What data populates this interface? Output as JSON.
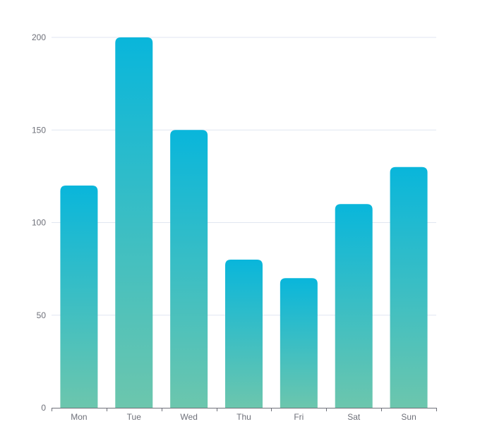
{
  "colors": {
    "bar_top": "#09b6db",
    "bar_bottom": "#6cc6ad",
    "grid": "#e0e6f1",
    "axis": "#6e7079",
    "tick_text": "#6e7079"
  },
  "chart_data": {
    "type": "bar",
    "categories": [
      "Mon",
      "Tue",
      "Wed",
      "Thu",
      "Fri",
      "Sat",
      "Sun"
    ],
    "series": [
      {
        "values": [
          120,
          200,
          150,
          80,
          70,
          110,
          130
        ]
      }
    ],
    "ylim": [
      0,
      200
    ],
    "yticks": [
      0,
      50,
      100,
      150,
      200
    ],
    "grid": true,
    "legend": "none",
    "title": "",
    "xlabel": "",
    "ylabel": ""
  }
}
